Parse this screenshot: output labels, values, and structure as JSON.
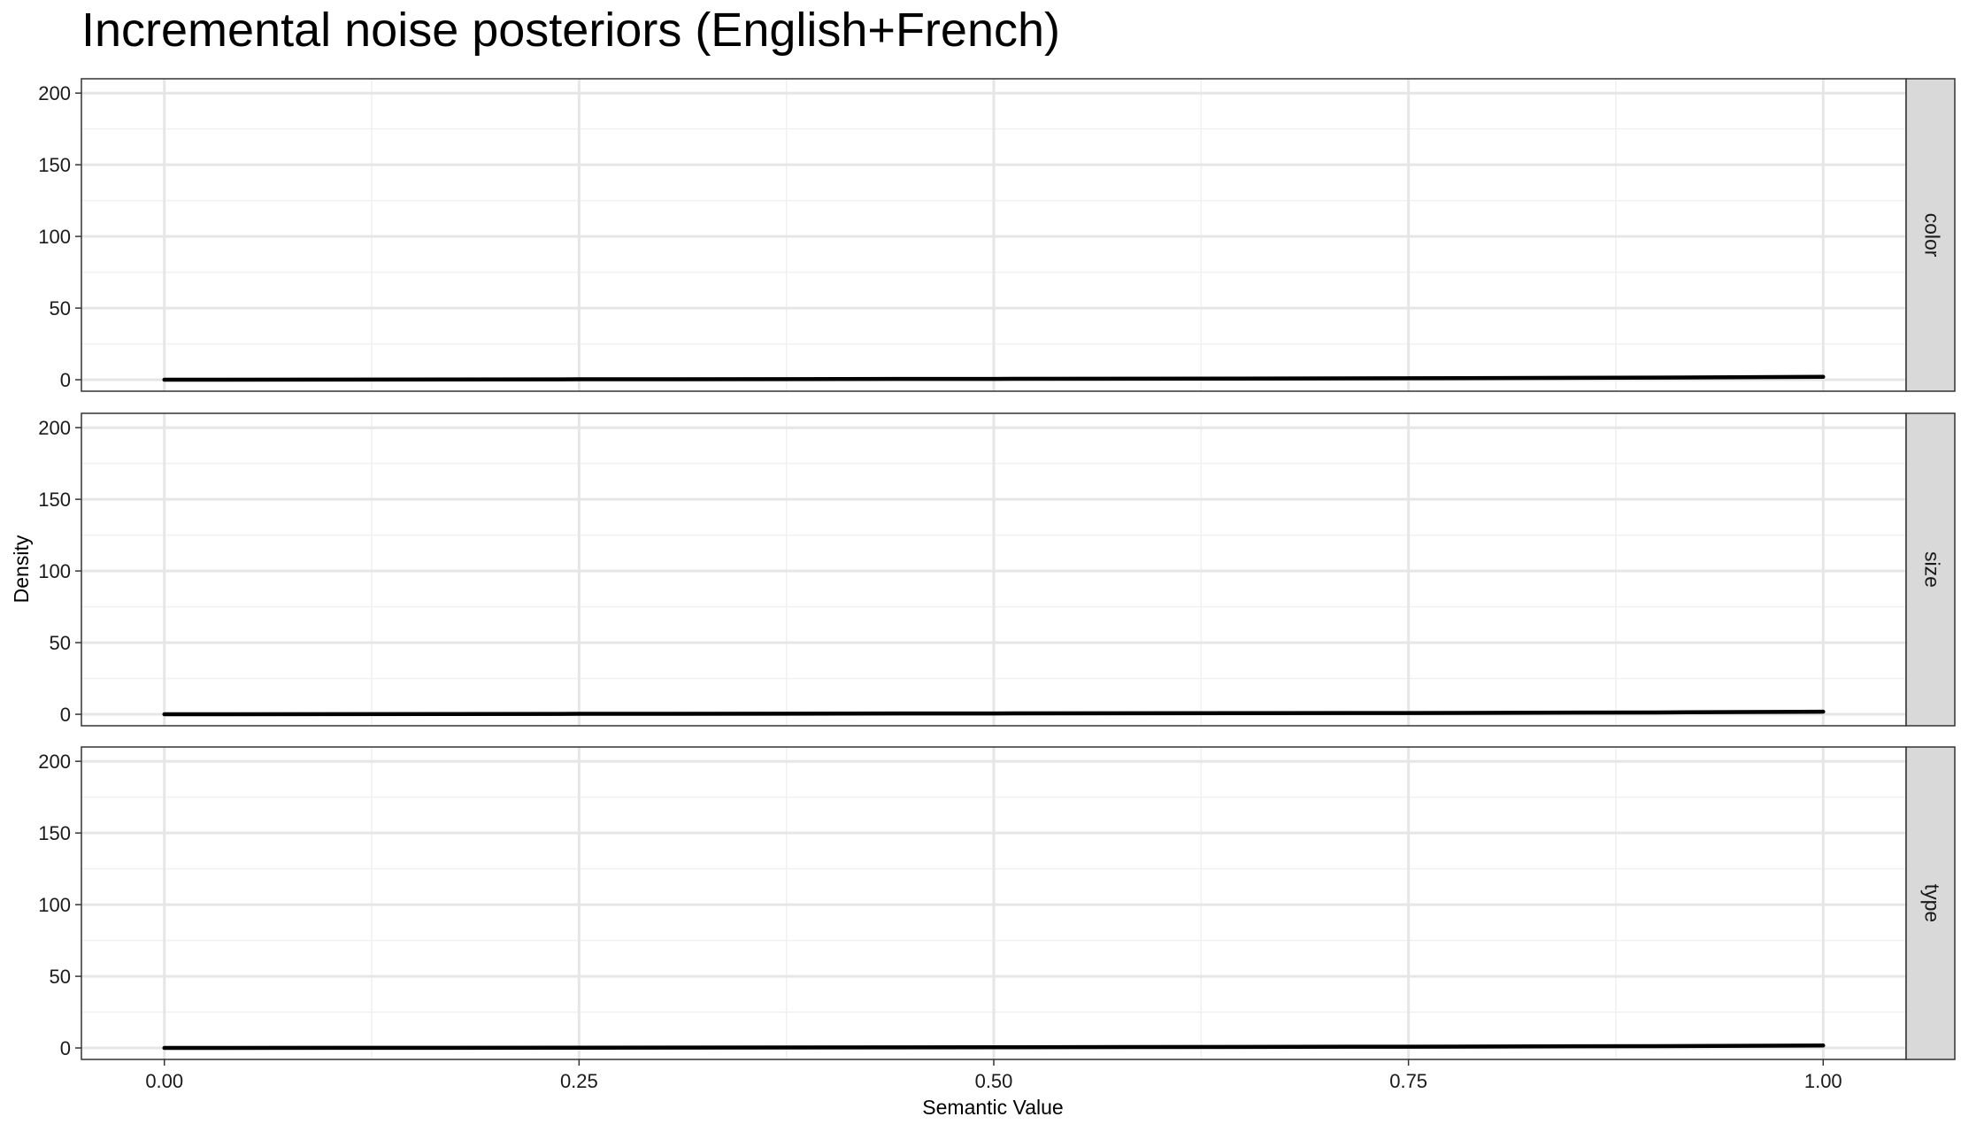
{
  "chart_data": {
    "type": "line",
    "title": "Incremental noise posteriors (English+French)",
    "xlabel": "Semantic Value",
    "ylabel": "Density",
    "xlim": [
      -0.05,
      1.05
    ],
    "ylim": [
      -8,
      210
    ],
    "x_ticks": [
      0.0,
      0.25,
      0.5,
      0.75,
      1.0
    ],
    "x_tick_labels": [
      "0.00",
      "0.25",
      "0.50",
      "0.75",
      "1.00"
    ],
    "y_ticks": [
      0,
      50,
      100,
      150,
      200
    ],
    "y_tick_labels": [
      "0",
      "50",
      "100",
      "150",
      "200"
    ],
    "grid": true,
    "legend": "none",
    "line_color": "#000000",
    "facets": [
      {
        "label": "color",
        "x": [
          0,
          0.25,
          0.5,
          0.75,
          0.9,
          1.0
        ],
        "y": [
          0,
          0.3,
          0.6,
          1.0,
          1.5,
          2.0
        ]
      },
      {
        "label": "size",
        "x": [
          0,
          0.25,
          0.5,
          0.75,
          0.9,
          1.0
        ],
        "y": [
          0,
          0.3,
          0.6,
          0.9,
          1.3,
          1.8
        ]
      },
      {
        "label": "type",
        "x": [
          0,
          0.25,
          0.5,
          0.75,
          0.9,
          1.0
        ],
        "y": [
          0,
          0.2,
          0.5,
          0.9,
          1.3,
          1.7
        ]
      }
    ]
  }
}
